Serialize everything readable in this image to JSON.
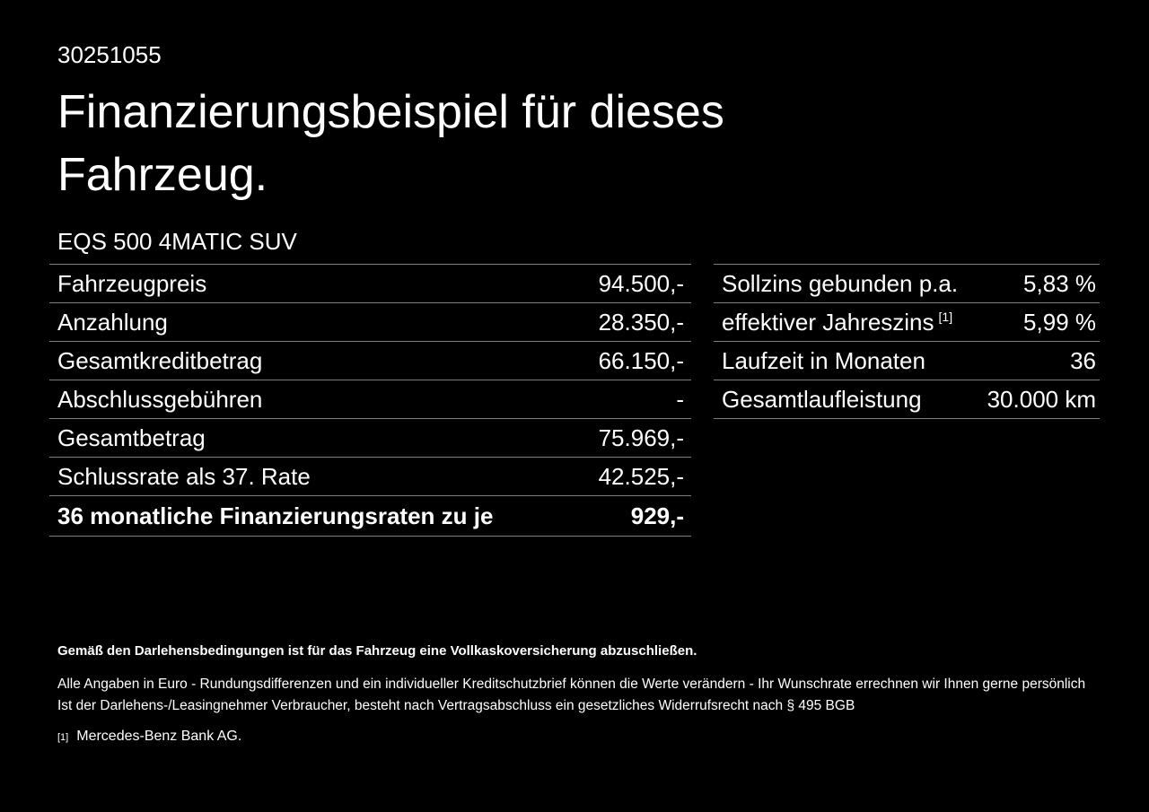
{
  "page": {
    "background_color": "#000000",
    "text_color": "#ffffff",
    "divider_color": "#7f7f7f"
  },
  "header": {
    "document_number": "30251055",
    "title": "Finanzierungsbeispiel für dieses Fahrzeug.",
    "vehicle_model": "EQS 500 4MATIC SUV"
  },
  "tables": {
    "finance": {
      "rows": [
        {
          "label": "Fahrzeugpreis",
          "value": "94.500,-"
        },
        {
          "label": "Anzahlung",
          "value": "28.350,-"
        },
        {
          "label": "Gesamtkreditbetrag",
          "value": "66.150,-"
        },
        {
          "label": "Abschlussgebühren",
          "value": "-"
        },
        {
          "label": "Gesamtbetrag",
          "value": "75.969,-"
        },
        {
          "label": "Schlussrate als 37. Rate",
          "value": "42.525,-"
        },
        {
          "label": "36 monatliche Finanzierungsraten zu je",
          "value": "929,-"
        }
      ]
    },
    "conditions": {
      "rows": [
        {
          "label": "Sollzins gebunden p.a.",
          "value": "5,83 %"
        },
        {
          "label": "effektiver Jahreszins",
          "footnote_marker": "[1]",
          "value": "5,99 %"
        },
        {
          "label": "Laufzeit in Monaten",
          "value": "36"
        },
        {
          "label": "Gesamtlaufleistung",
          "value": "30.000 km"
        }
      ]
    }
  },
  "footer": {
    "insurance_note": "Gemäß den Darlehensbedingungen ist für das Fahrzeug eine Vollkaskoversicherung abzuschließen.",
    "disclaimer_line1": "Alle Angaben in Euro - Rundungsdifferenzen und ein individueller Kreditschutzbrief können die Werte verändern - Ihr Wunschrate errechnen wir Ihnen gerne persönlich",
    "disclaimer_line2": "Ist der Darlehens-/Leasingnehmer Verbraucher, besteht nach Vertragsabschluss ein gesetzliches Widerrufsrecht nach § 495 BGB",
    "footnote": {
      "marker": "[1]",
      "text": "Mercedes-Benz Bank AG."
    }
  }
}
